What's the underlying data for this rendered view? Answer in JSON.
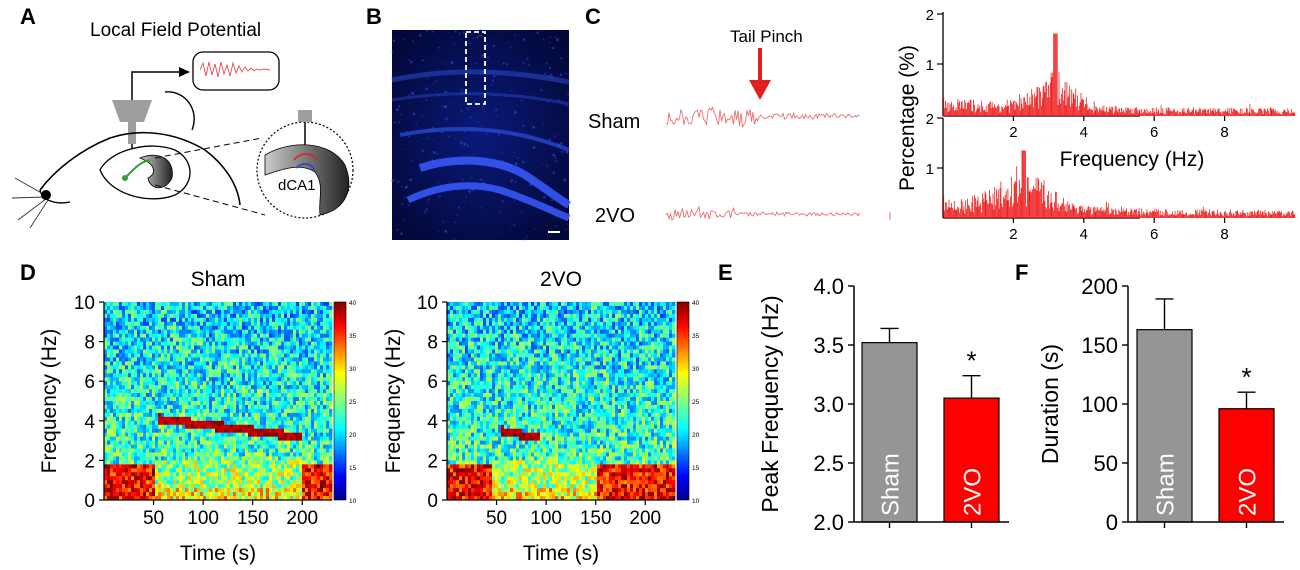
{
  "panels": {
    "A": "A",
    "B": "B",
    "C": "C",
    "D": "D",
    "E": "E",
    "F": "F"
  },
  "panel_a": {
    "title": "Local Field Potential",
    "region_label": "dCA1"
  },
  "panel_c": {
    "event_label": "Tail Pinch",
    "traces": [
      {
        "label": "Sham"
      },
      {
        "label": "2VO"
      }
    ],
    "spectrum": {
      "ylabel": "Percentage (%)",
      "xlabel": "Frequency (Hz)",
      "x_ticks": [
        "2",
        "4",
        "6",
        "8"
      ],
      "y_ticks_top": [
        "2",
        "1"
      ],
      "y_ticks_bottom": [
        "2",
        "1"
      ],
      "sham_peak_hz": 3.2,
      "vo_peak_hz": 2.3
    }
  },
  "panel_d": {
    "xlabel": "Time (s)",
    "ylabel": "Frequency (Hz)",
    "x_ticks": [
      "50",
      "100",
      "150",
      "200"
    ],
    "y_ticks": [
      "0",
      "2",
      "4",
      "6",
      "8",
      "10"
    ],
    "colorbar_ticks": [
      "40",
      "35",
      "30",
      "25",
      "20",
      "15",
      "10"
    ],
    "spectrograms": [
      {
        "title": "Sham"
      },
      {
        "title": "2VO"
      }
    ]
  },
  "chart_data": [
    {
      "panel": "E",
      "type": "bar",
      "categories": [
        "Sham",
        "2VO"
      ],
      "values": [
        3.52,
        3.05
      ],
      "errors": [
        0.12,
        0.19
      ],
      "colors": [
        "#959595",
        "#ff0000"
      ],
      "title": "",
      "xlabel": "",
      "ylabel": "Peak Frequency (Hz)",
      "ylim": [
        2.0,
        4.0
      ],
      "y_ticks": [
        "2.0",
        "2.5",
        "3.0",
        "3.5",
        "4.0"
      ],
      "significance": "*"
    },
    {
      "panel": "F",
      "type": "bar",
      "categories": [
        "Sham",
        "2VO"
      ],
      "values": [
        163,
        96
      ],
      "errors": [
        26,
        14
      ],
      "colors": [
        "#959595",
        "#ff0000"
      ],
      "title": "",
      "xlabel": "",
      "ylabel": "Duration (s)",
      "ylim": [
        0,
        200
      ],
      "y_ticks": [
        "0",
        "50",
        "100",
        "150",
        "200"
      ],
      "significance": "*"
    }
  ]
}
